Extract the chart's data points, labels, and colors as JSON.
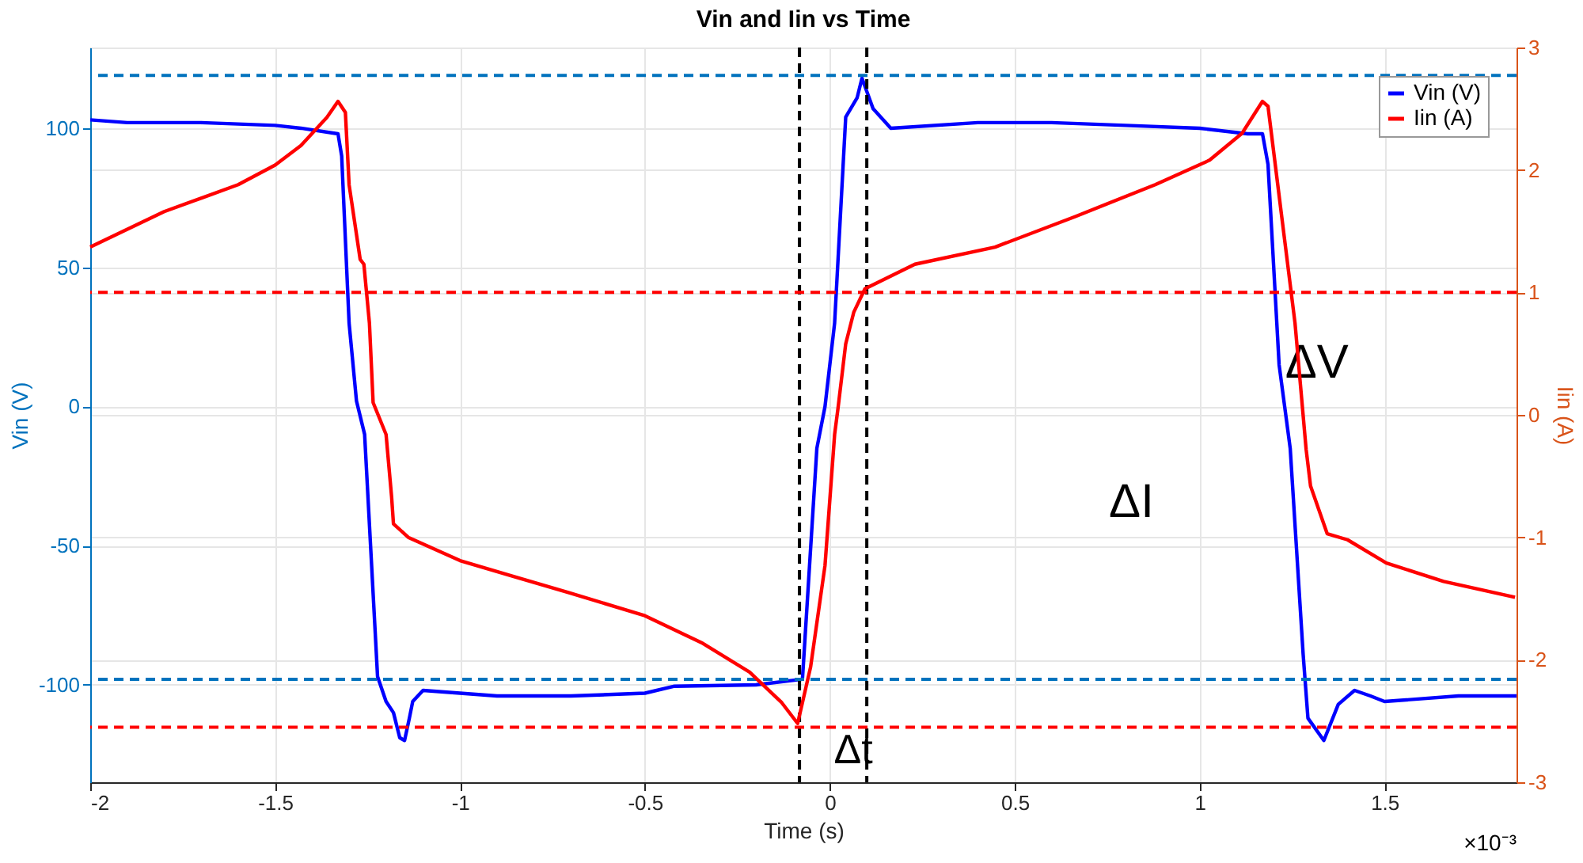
{
  "chart_data": {
    "type": "line",
    "title": "Vin and Iin vs Time",
    "xlabel": "Time (s)",
    "ylabel": "Vin (V)",
    "y2label": "Iin (A)",
    "xlim": [
      -2,
      1.857
    ],
    "xticks": [
      -2,
      -1.5,
      -1,
      -0.5,
      0,
      0.5,
      1,
      1.5
    ],
    "ylim": [
      -135,
      129
    ],
    "yticks": [
      -100,
      -50,
      0,
      50,
      100
    ],
    "y2lim": [
      -3,
      3
    ],
    "y2ticks": [
      -3,
      -2,
      -1,
      0,
      1,
      2,
      3
    ],
    "grid": true,
    "legend": "top right",
    "line_style": "solid",
    "marker": "none",
    "series": [
      {
        "name": "Vin (V)",
        "color": "#0000ff",
        "x": [
          -2,
          -1.9,
          -1.7,
          -1.5,
          -1.43,
          -1.33,
          -1.32,
          -1.3,
          -1.28,
          -1.258,
          -1.223,
          -1.2,
          -1.18,
          -1.163,
          -1.15,
          -1.137,
          -1.128,
          -1.1,
          -0.9,
          -0.7,
          -0.5,
          -0.42,
          -0.2,
          -0.074,
          -0.035,
          -0.013,
          0.013,
          0.043,
          0.074,
          0.087,
          0.117,
          0.165,
          0.4,
          0.6,
          0.8,
          1.0,
          1.13,
          1.17,
          1.185,
          1.215,
          1.245,
          1.28,
          1.293,
          1.336,
          1.375,
          1.419,
          1.462,
          1.5,
          1.7,
          1.857
        ],
        "values": [
          103,
          102,
          102,
          101,
          100,
          98,
          90,
          30,
          2,
          -10,
          -97,
          -106,
          -110,
          -119,
          -120,
          -112,
          -106,
          -102,
          -104,
          -104,
          -103,
          -100.5,
          -100,
          -98,
          -15,
          0,
          30,
          104,
          111,
          118,
          107,
          100,
          102,
          102,
          101,
          100,
          98,
          98,
          87,
          15,
          -15,
          -89,
          -112,
          -120,
          -107,
          -102,
          -104,
          -106,
          -104,
          -104
        ]
      },
      {
        "name": "Iin (A)",
        "color": "#ff0000",
        "axis": "y2",
        "x": [
          -2,
          -1.8,
          -1.6,
          -1.5,
          -1.43,
          -1.36,
          -1.33,
          -1.31,
          -1.3,
          -1.27,
          -1.26,
          -1.245,
          -1.235,
          -1.2,
          -1.185,
          -1.18,
          -1.14,
          -1.0,
          -0.855,
          -0.707,
          -0.5,
          -0.347,
          -0.217,
          -0.13,
          -0.087,
          -0.052,
          -0.013,
          0.013,
          0.022,
          0.043,
          0.065,
          0.095,
          0.23,
          0.447,
          0.664,
          0.88,
          1.027,
          1.115,
          1.17,
          1.185,
          1.215,
          1.258,
          1.288,
          1.3,
          1.345,
          1.4,
          1.505,
          1.66,
          1.853
        ],
        "values": [
          1.37,
          1.66,
          1.88,
          2.04,
          2.2,
          2.43,
          2.56,
          2.47,
          1.88,
          1.27,
          1.23,
          0.75,
          0.1,
          -0.16,
          -0.67,
          -0.89,
          -1.0,
          -1.19,
          -1.32,
          -1.45,
          -1.64,
          -1.86,
          -2.1,
          -2.35,
          -2.52,
          -2.06,
          -1.23,
          -0.16,
          0.05,
          0.58,
          0.84,
          1.03,
          1.23,
          1.37,
          1.62,
          1.88,
          2.08,
          2.3,
          2.56,
          2.52,
          1.79,
          0.75,
          -0.28,
          -0.58,
          -0.97,
          -1.02,
          -1.21,
          -1.36,
          -1.49
        ]
      }
    ],
    "ref_lines": [
      {
        "axis": "y",
        "value": 119,
        "color": "#0072bd",
        "line_style": "dashed"
      },
      {
        "axis": "y",
        "value": -98,
        "color": "#0072bd",
        "line_style": "dashed"
      },
      {
        "axis": "y2",
        "value": 1.0,
        "color": "#ff0000",
        "line_style": "dashed"
      },
      {
        "axis": "y2",
        "value": -2.55,
        "color": "#ff0000",
        "line_style": "dashed"
      },
      {
        "axis": "x",
        "value": -0.082,
        "color": "#000000",
        "line_style": "dashed"
      },
      {
        "axis": "x",
        "value": 0.1,
        "color": "#000000",
        "line_style": "dashed"
      }
    ],
    "annotations": [
      "ΔV",
      "ΔI",
      "Δt",
      "×10⁻³"
    ]
  }
}
